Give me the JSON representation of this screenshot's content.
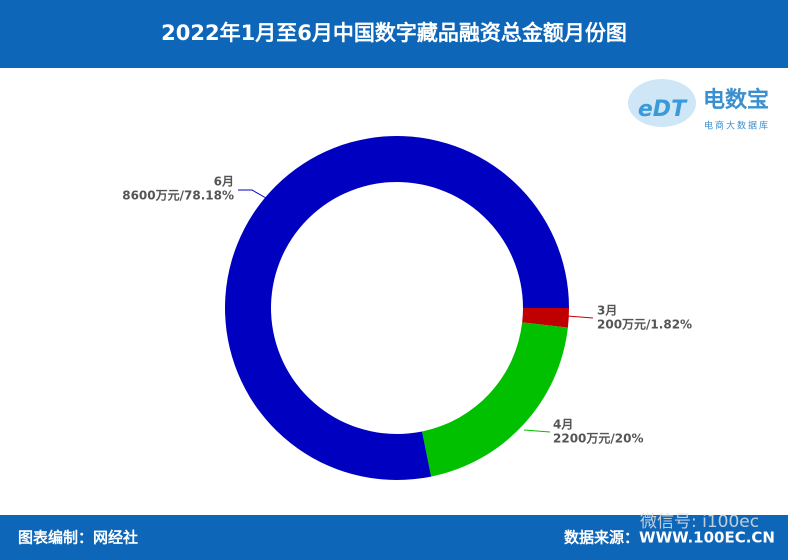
{
  "header": {
    "title": "2022年1月至6月中国数字藏品融资总金额月份图"
  },
  "chart_data": {
    "type": "donut",
    "categories": [
      "3月",
      "4月",
      "6月"
    ],
    "values": [
      200,
      2200,
      8600
    ],
    "value_labels": [
      "200万元/1.82%",
      "2200万元/20%",
      "8600万元/78.18%"
    ],
    "colors": [
      "#c00000",
      "#00c000",
      "#0000c0"
    ]
  },
  "logo": {
    "mark": "eDT",
    "name": "电数宝",
    "tagline": "电商大数据库"
  },
  "watermark": "微信号: i100ec",
  "footer": {
    "credit": "图表编制：网经社",
    "source": "数据来源：WWW.100EC.CN"
  }
}
